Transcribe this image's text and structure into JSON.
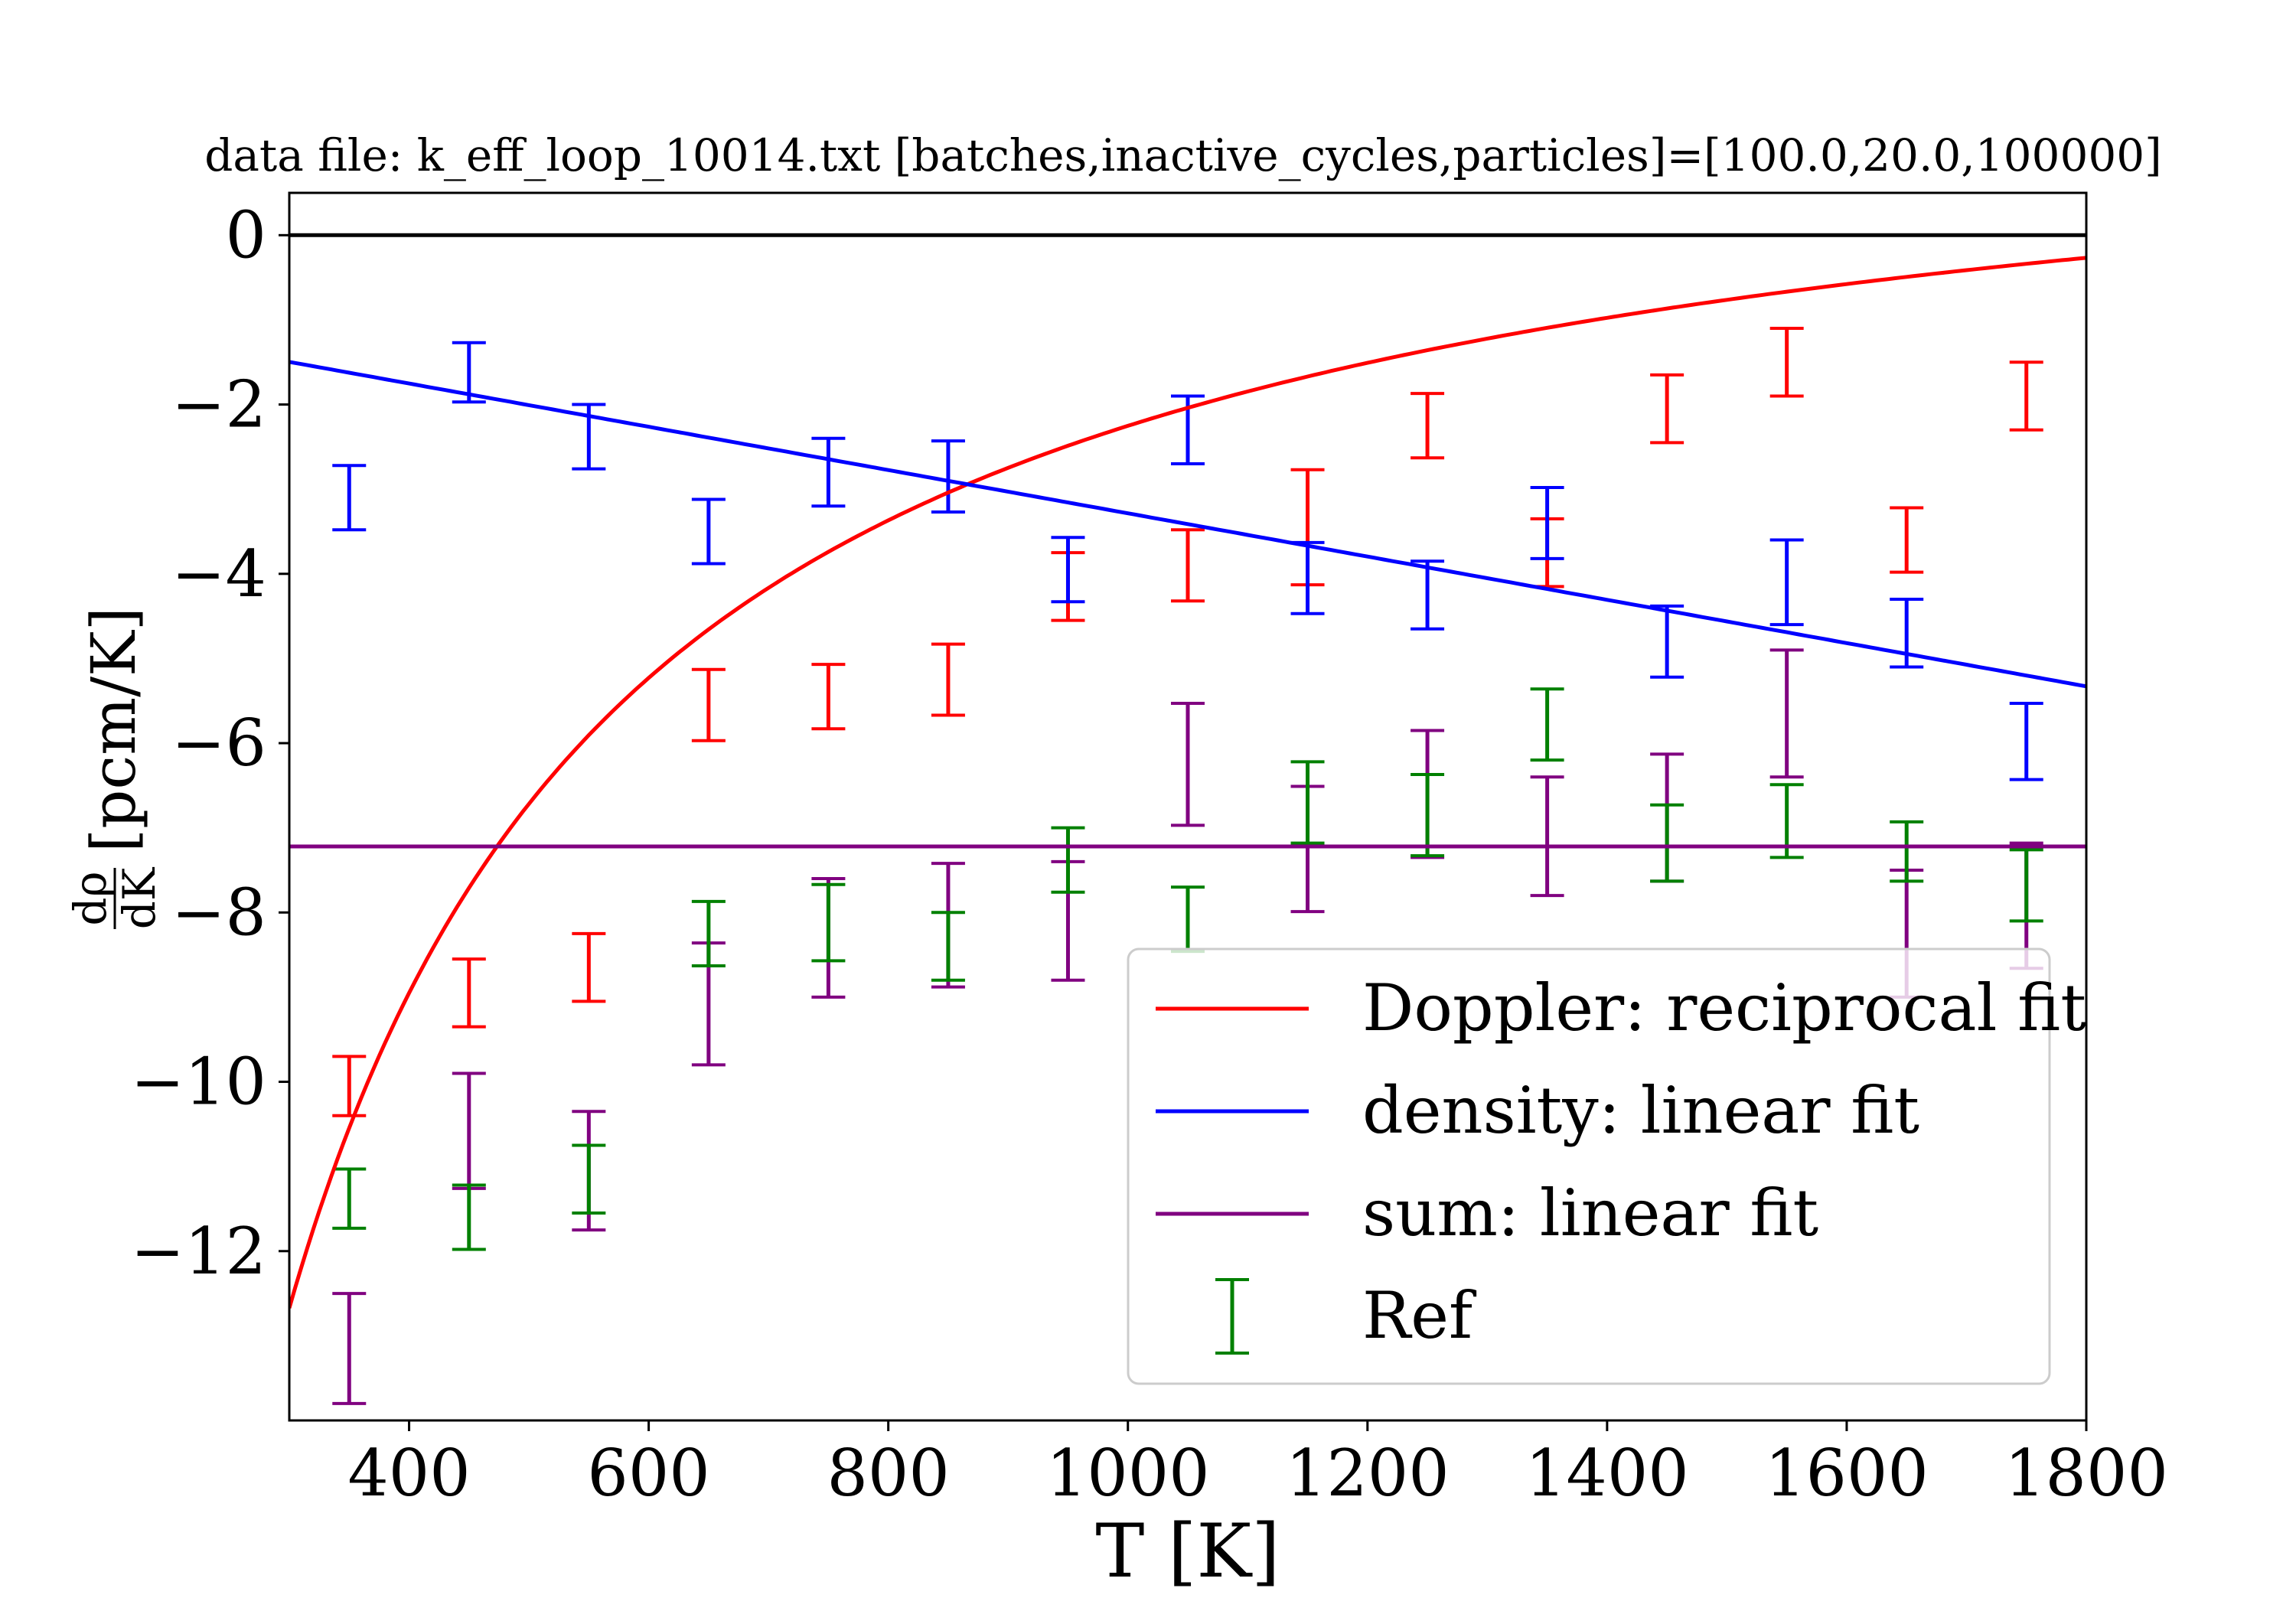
{
  "chart_data": {
    "type": "scatter",
    "title": "data file: k_eff_loop_10014.txt [batches,inactive_cycles,particles]=[100.0,20.0,100000]",
    "xlabel": "T [K]",
    "ylabel": {
      "numerator": "dρ",
      "denominator": "dK",
      "unit": "[pcm/K]"
    },
    "xlim": [
      300,
      1800
    ],
    "ylim": [
      -14,
      0.5
    ],
    "xticks": [
      400,
      600,
      800,
      1000,
      1200,
      1400,
      1600,
      1800
    ],
    "xtick_labels": [
      "400",
      "600",
      "800",
      "1000",
      "1200",
      "1400",
      "1600",
      "1800"
    ],
    "yticks": [
      0,
      -2,
      -4,
      -6,
      -8,
      -10,
      -12
    ],
    "ytick_labels": [
      "0",
      "−2",
      "−4",
      "−6",
      "−8",
      "−10",
      "−12"
    ],
    "zero_line": true,
    "grid": false,
    "legend_position": "lower-right",
    "errorbar_series": [
      {
        "key": "doppler",
        "color": "#ff0000",
        "x": [
          350,
          450,
          550,
          650,
          750,
          850,
          950,
          1050,
          1150,
          1250,
          1350,
          1450,
          1550,
          1650,
          1750
        ],
        "y": [
          -10.05,
          -8.95,
          -8.65,
          -5.55,
          -5.45,
          -5.25,
          -4.15,
          -3.9,
          -3.45,
          -2.25,
          -3.75,
          -2.05,
          -1.5,
          -3.6,
          -1.9
        ],
        "err": [
          0.35,
          0.4,
          0.4,
          0.42,
          0.38,
          0.42,
          0.4,
          0.42,
          0.68,
          0.38,
          0.4,
          0.4,
          0.4,
          0.38,
          0.4
        ]
      },
      {
        "key": "density",
        "color": "#0000ff",
        "x": [
          350,
          450,
          550,
          650,
          750,
          850,
          950,
          1050,
          1150,
          1250,
          1350,
          1450,
          1550,
          1650,
          1750
        ],
        "y": [
          -3.1,
          -1.62,
          -2.38,
          -3.5,
          -2.8,
          -2.85,
          -3.95,
          -2.3,
          -4.05,
          -4.25,
          -3.4,
          -4.8,
          -4.1,
          -4.7,
          -5.98
        ],
        "err": [
          0.38,
          0.35,
          0.38,
          0.38,
          0.4,
          0.42,
          0.38,
          0.4,
          0.42,
          0.4,
          0.42,
          0.42,
          0.5,
          0.4,
          0.45
        ]
      },
      {
        "key": "sum",
        "color": "#800080",
        "x": [
          350,
          450,
          550,
          650,
          750,
          850,
          950,
          1050,
          1150,
          1250,
          1350,
          1450,
          1550,
          1650,
          1750
        ],
        "y": [
          -13.15,
          -10.58,
          -11.05,
          -9.08,
          -8.3,
          -8.15,
          -8.1,
          -6.25,
          -7.25,
          -6.6,
          -7.1,
          -6.88,
          -5.65,
          -8.25,
          -7.92
        ],
        "err": [
          0.65,
          0.68,
          0.7,
          0.72,
          0.7,
          0.73,
          0.7,
          0.72,
          0.74,
          0.75,
          0.7,
          0.75,
          0.75,
          0.75,
          0.74
        ]
      },
      {
        "key": "ref",
        "color": "#008000",
        "x": [
          350,
          450,
          550,
          650,
          750,
          850,
          950,
          1050,
          1150,
          1250,
          1350,
          1450,
          1550,
          1650,
          1750
        ],
        "y": [
          -11.38,
          -11.6,
          -11.15,
          -8.25,
          -8.12,
          -8.4,
          -7.38,
          -8.08,
          -6.7,
          -6.85,
          -5.78,
          -7.18,
          -6.92,
          -7.28,
          -7.68
        ],
        "err": [
          0.35,
          0.38,
          0.4,
          0.38,
          0.45,
          0.4,
          0.38,
          0.38,
          0.48,
          0.48,
          0.42,
          0.45,
          0.43,
          0.35,
          0.42
        ]
      }
    ],
    "fit_lines": [
      {
        "key": "doppler",
        "name": "Doppler: reciprocal fit",
        "color": "#ff0000",
        "kind": "reciprocal",
        "a": 2.214,
        "b": -4466,
        "x_from": 300,
        "x_to": 1800
      },
      {
        "key": "density",
        "name": "density: linear fit",
        "color": "#0000ff",
        "kind": "linear",
        "intercept": -0.73,
        "slope": -0.002555,
        "x_from": 300,
        "x_to": 1800
      },
      {
        "key": "sum",
        "name": "sum: linear fit",
        "color": "#800080",
        "kind": "linear",
        "intercept": -7.22,
        "slope": 0,
        "x_from": 300,
        "x_to": 1800
      }
    ],
    "legend": [
      {
        "label": "Doppler: reciprocal fit",
        "color": "#ff0000",
        "kind": "line"
      },
      {
        "label": "density: linear fit",
        "color": "#0000ff",
        "kind": "line"
      },
      {
        "label": "sum: linear fit",
        "color": "#800080",
        "kind": "line"
      },
      {
        "label": "Ref",
        "color": "#008000",
        "kind": "errorbar"
      }
    ]
  }
}
